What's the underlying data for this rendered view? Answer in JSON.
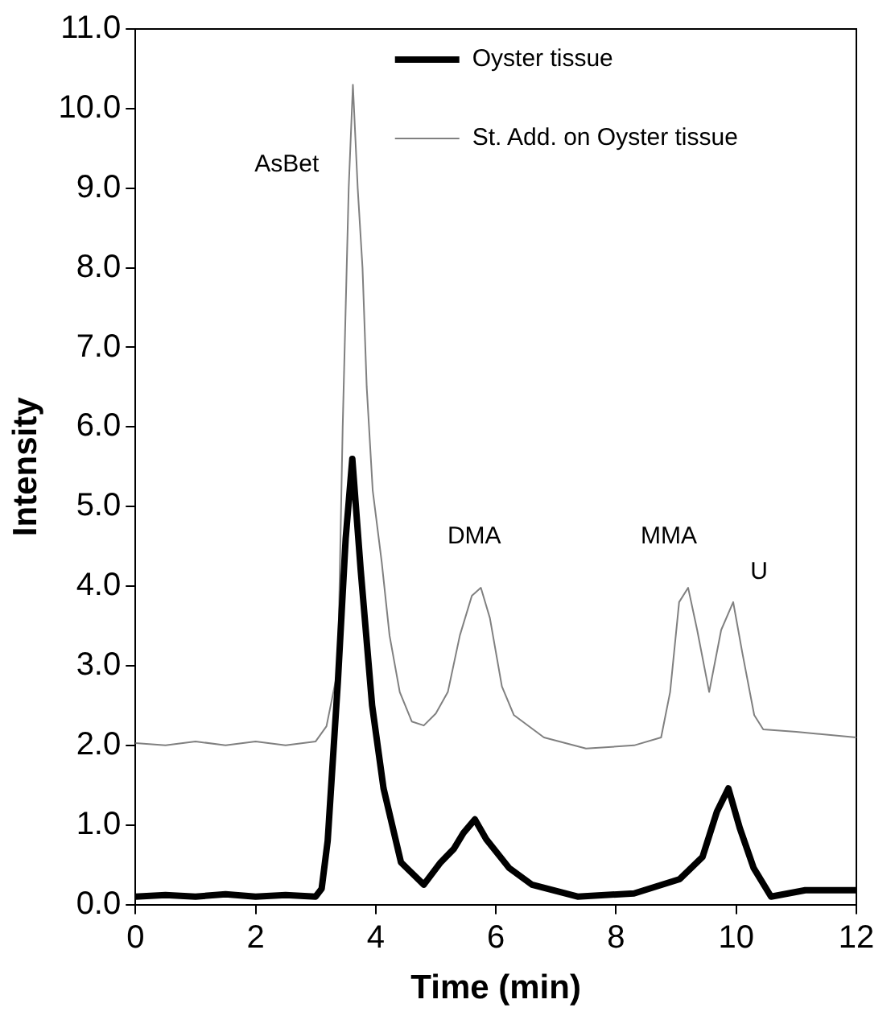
{
  "chart_data": {
    "type": "line",
    "xlabel": "Time (min)",
    "ylabel": "Intensity",
    "xlim": [
      0,
      12
    ],
    "xticks": [
      0,
      2,
      4,
      6,
      8,
      10,
      12
    ],
    "ylim": [
      0,
      11
    ],
    "yticks": [
      {
        "value": 0,
        "label": "0.0"
      },
      {
        "value": 1,
        "label": "1.0"
      },
      {
        "value": 2,
        "label": "2.0"
      },
      {
        "value": 3,
        "label": "3.0"
      },
      {
        "value": 4,
        "label": "4.0"
      },
      {
        "value": 5,
        "label": "5.0"
      },
      {
        "value": 6,
        "label": "6.0"
      },
      {
        "value": 7,
        "label": "7.0"
      },
      {
        "value": 8,
        "label": "8.0"
      },
      {
        "value": 9,
        "label": "9.0"
      },
      {
        "value": 10,
        "label": "10.0"
      },
      {
        "value": 11,
        "label": "11.0"
      }
    ],
    "grid": false,
    "legend": "top right",
    "marker": "none",
    "annotations": [
      "AsBet",
      "DMA",
      "MMA",
      "U"
    ],
    "series": [
      {
        "name": "Oyster tissue",
        "color": "#000000",
        "x": [
          0,
          0.5,
          1,
          1.5,
          2,
          2.5,
          3,
          3.1,
          3.2,
          3.37,
          3.5,
          3.61,
          3.75,
          3.94,
          4.13,
          4.42,
          4.8,
          5.08,
          5.3,
          5.46,
          5.65,
          5.84,
          6.22,
          6.6,
          7.36,
          8.3,
          9.06,
          9.44,
          9.68,
          9.87,
          10.06,
          10.29,
          10.58,
          11.15,
          12
        ],
        "values": [
          0.1,
          0.12,
          0.1,
          0.13,
          0.1,
          0.12,
          0.1,
          0.2,
          0.8,
          2.8,
          4.6,
          5.6,
          4.2,
          2.5,
          1.46,
          0.53,
          0.25,
          0.53,
          0.7,
          0.9,
          1.07,
          0.82,
          0.46,
          0.25,
          0.1,
          0.14,
          0.32,
          0.6,
          1.17,
          1.46,
          0.96,
          0.46,
          0.1,
          0.18,
          0.18
        ]
      },
      {
        "name": "St. Add. on Oyster tissue",
        "color": "#808080",
        "x": [
          0,
          0.5,
          1,
          1.5,
          2,
          2.5,
          3,
          3.18,
          3.37,
          3.45,
          3.55,
          3.62,
          3.7,
          3.78,
          3.85,
          3.95,
          4.1,
          4.23,
          4.4,
          4.6,
          4.8,
          5,
          5.2,
          5.4,
          5.6,
          5.75,
          5.9,
          6.1,
          6.3,
          6.8,
          7.5,
          8.3,
          8.75,
          8.9,
          9.05,
          9.2,
          9.35,
          9.55,
          9.75,
          9.95,
          10.1,
          10.3,
          10.45,
          11,
          12
        ],
        "values": [
          2.03,
          2.0,
          2.05,
          2.0,
          2.05,
          2.0,
          2.05,
          2.24,
          2.95,
          6.0,
          9.0,
          10.3,
          9.0,
          8.0,
          6.5,
          5.2,
          4.3,
          3.38,
          2.67,
          2.3,
          2.25,
          2.4,
          2.67,
          3.38,
          3.88,
          3.98,
          3.6,
          2.74,
          2.38,
          2.1,
          1.96,
          2.0,
          2.1,
          2.67,
          3.8,
          3.98,
          3.45,
          2.67,
          3.45,
          3.8,
          3.17,
          2.38,
          2.2,
          2.17,
          2.1
        ]
      }
    ]
  }
}
